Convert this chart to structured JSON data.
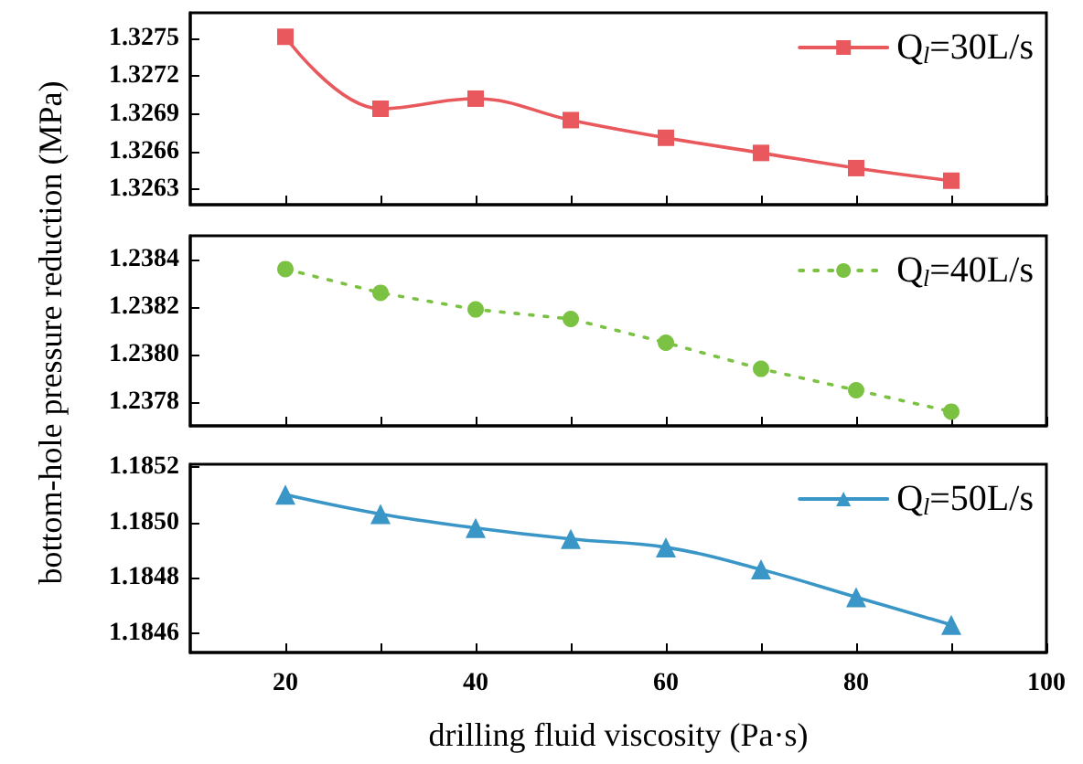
{
  "chart_data": [
    {
      "type": "line",
      "x": [
        20,
        30,
        40,
        50,
        60,
        70,
        80,
        90
      ],
      "series": [
        {
          "name": "Q$_{l}$=30L/s",
          "color": "#e8585c",
          "values": [
            1.32751,
            1.32694,
            1.32702,
            1.32685,
            1.32671,
            1.32659,
            1.32647,
            1.32637
          ],
          "marker": "square",
          "line_style": "solid"
        }
      ],
      "xlim": [
        10,
        100
      ],
      "xticks": [
        20,
        {
          "value": 30,
          "label": null
        },
        40,
        {
          "value": 50,
          "label": null
        },
        60,
        {
          "value": 70,
          "label": null
        },
        80,
        {
          "value": 90,
          "label": null
        },
        100
      ],
      "ylim": [
        1.32618,
        1.3277
      ],
      "yticks": [
        1.3263,
        1.3266,
        1.3269,
        1.3272,
        1.3275
      ],
      "tick_labels": "y",
      "grid": false,
      "legend": "top right"
    },
    {
      "type": "line",
      "x": [
        20,
        30,
        40,
        50,
        60,
        70,
        80,
        90
      ],
      "series": [
        {
          "name": "Q$_{l}$=40L/s",
          "color": "#7cc242",
          "values": [
            1.23836,
            1.23826,
            1.23819,
            1.23815,
            1.23805,
            1.23794,
            1.23785,
            1.23776
          ],
          "marker": "circle",
          "line_style": "dotted"
        }
      ],
      "xlim": [
        10,
        100
      ],
      "xticks": [
        20,
        {
          "value": 30,
          "label": null
        },
        40,
        {
          "value": 50,
          "label": null
        },
        60,
        {
          "value": 70,
          "label": null
        },
        80,
        {
          "value": 90,
          "label": null
        },
        100
      ],
      "ylim": [
        1.2377,
        1.2385
      ],
      "yticks": [
        1.2378,
        {
          "value": 1.238,
          "label": "1.2380"
        },
        1.2382,
        1.2384
      ],
      "ylabel": "bottom-hole pressure reduction (MPa)",
      "tick_labels": "y",
      "grid": false,
      "legend": "top right"
    },
    {
      "type": "line",
      "x": [
        20,
        30,
        40,
        50,
        60,
        70,
        80,
        90
      ],
      "series": [
        {
          "name": "Q$_{l}$=50L/s",
          "color": "#3b96c8",
          "values": [
            1.1851,
            1.18503,
            1.18498,
            1.18494,
            1.18491,
            1.18483,
            1.18473,
            1.18463
          ],
          "marker": "triangle",
          "line_style": "solid"
        }
      ],
      "xlim": [
        10,
        100
      ],
      "xticks": [
        20,
        {
          "value": 30,
          "label": null
        },
        40,
        {
          "value": 50,
          "label": null
        },
        60,
        {
          "value": 70,
          "label": null
        },
        80,
        {
          "value": 90,
          "label": null
        },
        100
      ],
      "ylim": [
        1.18453,
        1.18521
      ],
      "yticks": [
        1.1846,
        1.1848,
        {
          "value": 1.185,
          "label": "1.1850"
        },
        1.1852
      ],
      "xlabel": "drilling fluid viscosity (Pa·s)",
      "grid": false,
      "legend": "top right"
    }
  ]
}
